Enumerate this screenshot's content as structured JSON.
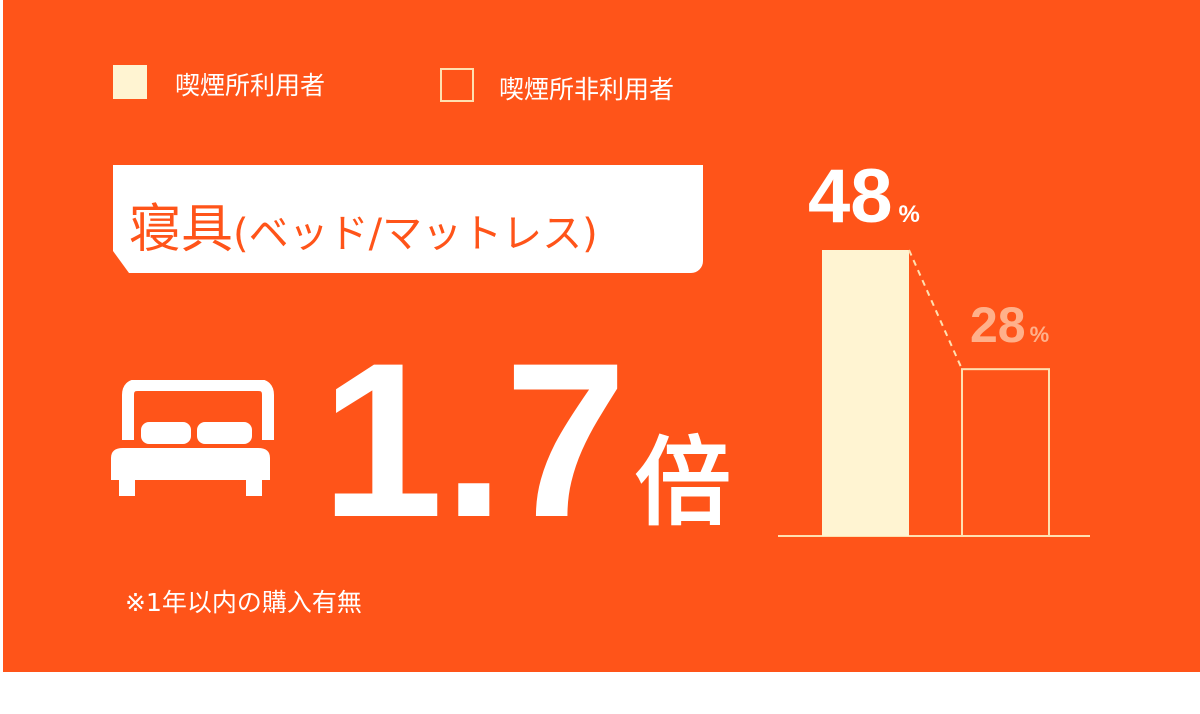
{
  "legend": [
    {
      "label": "喫煙所利用者",
      "color": "#FFF4D2",
      "style": "filled"
    },
    {
      "label": "喫煙所非利用者",
      "color": "#FFE0B0",
      "style": "outline"
    }
  ],
  "title": {
    "main": "寝具",
    "sub": "(ベッド/マットレス)"
  },
  "icon": "bed-icon",
  "ratio": {
    "value": "1.7",
    "unit": "倍"
  },
  "note": "※1年以内の購入有無",
  "colors": {
    "background": "#FF5419",
    "bar_filled": "#FFF4D2",
    "bar_outline": "#FFE0B0",
    "text": "#FFFFFF",
    "muted_label": "#FFB08A"
  },
  "chart_data": {
    "type": "bar",
    "categories": [
      "喫煙所利用者",
      "喫煙所非利用者"
    ],
    "values": [
      48,
      28
    ],
    "labels": [
      {
        "number": "48",
        "unit": "%"
      },
      {
        "number": "28",
        "unit": "%"
      }
    ],
    "ylim": [
      0,
      48
    ],
    "grid": false,
    "legend": "top-left"
  }
}
